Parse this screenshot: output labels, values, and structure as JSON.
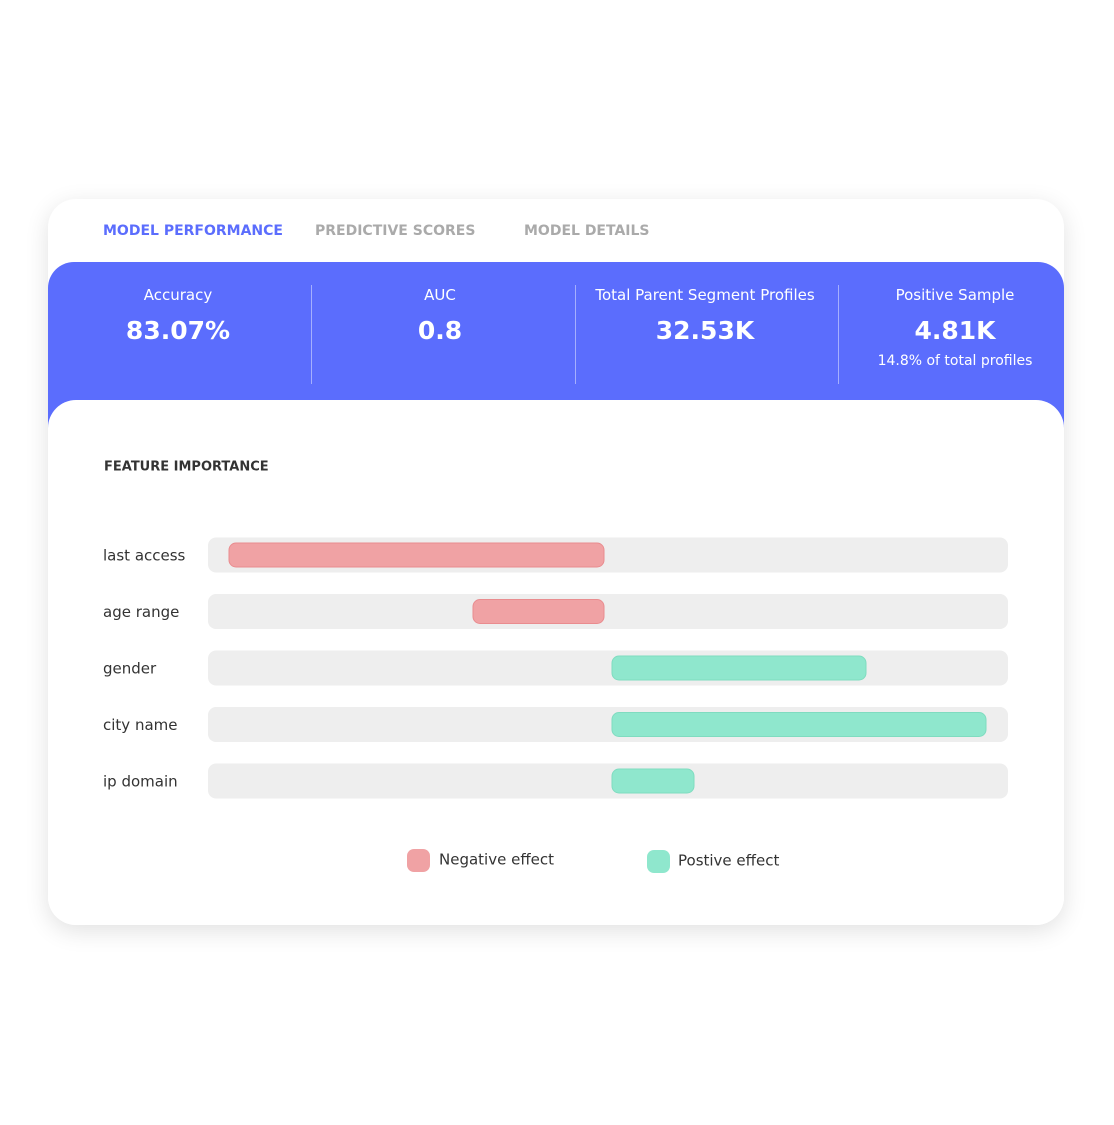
{
  "tabs": {
    "items": [
      "MODEL PERFORMANCE",
      "PREDICTIVE SCORES",
      "MODEL DETAILS"
    ],
    "active": 0
  },
  "metrics": [
    {
      "label": "Accuracy",
      "value": "83.07%"
    },
    {
      "label": "AUC",
      "value": "0.8"
    },
    {
      "label": "Total Parent Segment Profiles",
      "value": "32.53K"
    },
    {
      "label": "Positive Sample",
      "value": "4.81K",
      "note": "14.8% of total profiles"
    }
  ],
  "chart_data": {
    "type": "diverging-bar",
    "title": "FEATURE IMPORTANCE",
    "categories": [
      "last access",
      "age range",
      "gender",
      "city name",
      "ip domain"
    ],
    "values": [
      -0.97,
      -0.36,
      0.67,
      0.97,
      0.24
    ],
    "xlim": [
      -1,
      1
    ],
    "series": [
      {
        "name": "Negative effect",
        "color": "#f0a2a4"
      },
      {
        "name": "Postive effect",
        "color": "#8fe7cd"
      }
    ]
  }
}
